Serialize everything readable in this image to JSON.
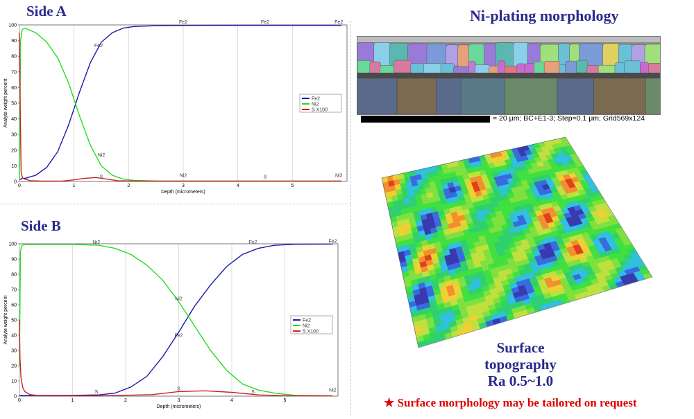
{
  "headings": {
    "side_a": "Side A",
    "side_b": "Side B",
    "morphology": "Ni-plating morphology",
    "surface_line1": "Surface",
    "surface_line2": "topography",
    "surface_line3": "Ra 0.5~1.0",
    "note_star": "★",
    "note": "Surface morphology may be tailored on request"
  },
  "micrograph": {
    "scale_text": "= 20 μm; BC+E1-3; Step=0.1 μm; Grid569x124"
  },
  "colors": {
    "fe": "#1a1aa8",
    "ni": "#22dd22",
    "s": "#cc2222",
    "title": "#2a2a8c",
    "note": "#e00000"
  },
  "chart_data": [
    {
      "id": "side_a",
      "type": "line",
      "xlabel": "Depth (micrometers)",
      "ylabel": "Analyte weight percent",
      "xlim": [
        0,
        6
      ],
      "ylim": [
        0,
        100
      ],
      "xticks": [
        0,
        1,
        2,
        3,
        4,
        5
      ],
      "yticks": [
        0,
        10,
        20,
        30,
        40,
        50,
        60,
        70,
        80,
        90,
        100
      ],
      "legend": [
        "Fe2",
        "Ni2",
        "S X100"
      ],
      "legend_position": "right",
      "series": [
        {
          "name": "Fe2",
          "color": "#1a1aa8",
          "x": [
            0,
            0.05,
            0.1,
            0.3,
            0.5,
            0.7,
            0.9,
            1.1,
            1.3,
            1.5,
            1.7,
            1.9,
            2.1,
            2.5,
            3.0,
            4.0,
            5.0,
            5.9
          ],
          "y": [
            1,
            2,
            2,
            4,
            9,
            19,
            36,
            57,
            76,
            89,
            95,
            98,
            99,
            99.5,
            99.7,
            99.8,
            99.8,
            99.8
          ]
        },
        {
          "name": "Ni2",
          "color": "#22dd22",
          "x": [
            0,
            0.02,
            0.05,
            0.1,
            0.3,
            0.5,
            0.7,
            0.9,
            1.1,
            1.3,
            1.5,
            1.7,
            1.9,
            2.1,
            2.5,
            3.0,
            4.0,
            5.0,
            5.9
          ],
          "y": [
            2,
            90,
            97,
            98,
            95,
            89,
            79,
            63,
            42,
            23,
            10,
            4,
            1.5,
            0.7,
            0.3,
            0.2,
            0.2,
            0.2,
            0.2
          ]
        },
        {
          "name": "S X100",
          "color": "#cc2222",
          "x": [
            0,
            0.01,
            0.03,
            0.06,
            0.1,
            0.2,
            0.4,
            0.8,
            1.0,
            1.2,
            1.4,
            1.6,
            1.8,
            2.2,
            3.0,
            4.0,
            5.0,
            5.9
          ],
          "y": [
            95,
            60,
            6,
            2,
            1.5,
            0.5,
            0.2,
            0.3,
            1,
            2,
            2.5,
            1.5,
            0.5,
            0.2,
            0.2,
            0.2,
            0.2,
            0.2
          ]
        }
      ],
      "annotations": [
        {
          "text": "Fe2",
          "x": 1.45,
          "y": 85
        },
        {
          "text": "Fe2",
          "x": 3.0,
          "y": 100
        },
        {
          "text": "Fe2",
          "x": 4.5,
          "y": 100
        },
        {
          "text": "Fe2",
          "x": 5.85,
          "y": 100
        },
        {
          "text": "Ni2",
          "x": 1.5,
          "y": 15
        },
        {
          "text": "Ni2",
          "x": 3.0,
          "y": 2
        },
        {
          "text": "Ni2",
          "x": 5.85,
          "y": 2
        },
        {
          "text": "S",
          "x": 1.5,
          "y": 1
        },
        {
          "text": "S",
          "x": 4.5,
          "y": 1
        }
      ]
    },
    {
      "id": "side_b",
      "type": "line",
      "xlabel": "Depth (micrometers)",
      "ylabel": "Analyte weight percent",
      "xlim": [
        0,
        6
      ],
      "ylim": [
        0,
        100
      ],
      "xticks": [
        0,
        1,
        2,
        3,
        4,
        5
      ],
      "yticks": [
        0,
        10,
        20,
        30,
        40,
        50,
        60,
        70,
        80,
        90,
        100
      ],
      "legend": [
        "Fe2",
        "Ni2",
        "S X100"
      ],
      "legend_position": "right",
      "series": [
        {
          "name": "Fe2",
          "color": "#1a1aa8",
          "x": [
            0,
            0.5,
            1.0,
            1.5,
            1.8,
            2.1,
            2.4,
            2.7,
            3.0,
            3.3,
            3.6,
            3.9,
            4.2,
            4.5,
            4.8,
            5.2,
            5.9
          ],
          "y": [
            0.5,
            0.5,
            0.5,
            0.8,
            2,
            6,
            13,
            26,
            42,
            59,
            73,
            85,
            93,
            97,
            99,
            99.7,
            99.8
          ]
        },
        {
          "name": "Ni2",
          "color": "#22dd22",
          "x": [
            0,
            0.02,
            0.05,
            0.1,
            0.5,
            1.0,
            1.5,
            1.8,
            2.1,
            2.4,
            2.7,
            3.0,
            3.3,
            3.6,
            3.9,
            4.2,
            4.5,
            4.8,
            5.2,
            5.9
          ],
          "y": [
            20,
            95,
            99,
            99.5,
            99.6,
            99.6,
            99,
            97,
            93,
            86,
            76,
            62,
            46,
            30,
            17,
            8,
            4,
            2,
            0.5,
            0.2
          ]
        },
        {
          "name": "S X100",
          "color": "#cc2222",
          "x": [
            0,
            0.01,
            0.03,
            0.06,
            0.1,
            0.2,
            0.4,
            0.8,
            1.5,
            2.5,
            3.0,
            3.5,
            4.0,
            4.5,
            5.0,
            5.9
          ],
          "y": [
            50,
            25,
            12,
            6,
            3,
            1,
            0.3,
            0.2,
            0.2,
            1,
            3,
            3.5,
            2.5,
            0.8,
            0.3,
            0.2
          ]
        }
      ],
      "annotations": [
        {
          "text": "Ni2",
          "x": 1.45,
          "y": 99
        },
        {
          "text": "Ni2",
          "x": 3.0,
          "y": 62
        },
        {
          "text": "Ni2",
          "x": 5.9,
          "y": 2
        },
        {
          "text": "Fe2",
          "x": 3.0,
          "y": 38
        },
        {
          "text": "Fe2",
          "x": 4.4,
          "y": 99
        },
        {
          "text": "Fe2",
          "x": 5.9,
          "y": 99.8
        },
        {
          "text": "S",
          "x": 1.45,
          "y": 1
        },
        {
          "text": "S",
          "x": 3.0,
          "y": 3
        },
        {
          "text": "S",
          "x": 4.4,
          "y": 1
        }
      ]
    }
  ]
}
